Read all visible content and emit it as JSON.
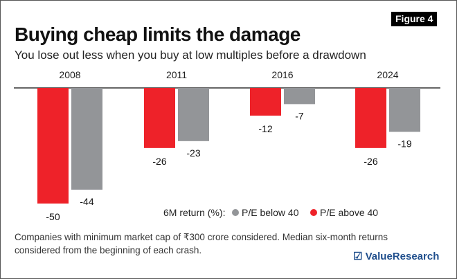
{
  "figure_badge": "Figure 4",
  "title": "Buying cheap limits the damage",
  "subtitle": "You lose out less when you buy at low multiples before a drawdown",
  "footnote": "Companies with minimum market cap of ₹300 crore considered. Median six-month returns considered from the beginning of each crash.",
  "logo": {
    "icon": "checkbox-icon",
    "text": "☑ ValueResearch"
  },
  "colors": {
    "above": "#ee2229",
    "below": "#939598",
    "axis": "#333333"
  },
  "chart_data": {
    "type": "bar",
    "title": "Buying cheap limits the damage",
    "categories": [
      "2008",
      "2011",
      "2016",
      "2024"
    ],
    "series": [
      {
        "name": "P/E above 40",
        "values": [
          -50,
          -26,
          -12,
          -26
        ]
      },
      {
        "name": "P/E below 40",
        "values": [
          -44,
          -23,
          -7,
          -19
        ]
      }
    ],
    "legend": {
      "title": "6M return (%):",
      "entries": [
        "P/E below 40",
        "P/E above 40"
      ],
      "placement": "bottom-right"
    },
    "xlabel": "",
    "ylabel": "6M return (%)",
    "ylim": [
      -50,
      0
    ],
    "grid": false
  }
}
